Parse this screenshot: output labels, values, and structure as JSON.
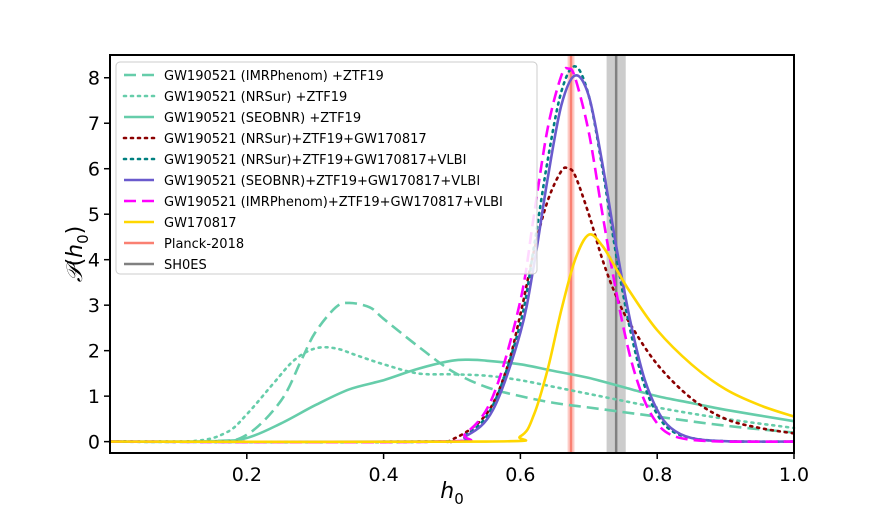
{
  "chart_data": {
    "type": "line",
    "title": "",
    "xlabel": "h_0",
    "ylabel": "P(h_0)",
    "xlim": [
      0.0,
      1.0
    ],
    "ylim": [
      -0.25,
      8.5
    ],
    "xticks": [
      0.2,
      0.4,
      0.6,
      0.8,
      1.0
    ],
    "xtick_labels": [
      "0.2",
      "0.4",
      "0.6",
      "0.8",
      "1.0"
    ],
    "yticks": [
      0,
      1,
      2,
      3,
      4,
      5,
      6,
      7,
      8
    ],
    "ytick_labels": [
      "0",
      "1",
      "2",
      "3",
      "4",
      "5",
      "6",
      "7",
      "8"
    ],
    "legend_position": "top-left",
    "series": [
      {
        "name": "GW190521 (IMRPhenom) +ZTF19",
        "color": "#66cdaa",
        "dash": "dashed",
        "x": [
          0.0,
          0.15,
          0.2,
          0.25,
          0.28,
          0.3,
          0.33,
          0.35,
          0.38,
          0.4,
          0.45,
          0.5,
          0.55,
          0.6,
          0.65,
          0.7,
          0.75,
          0.8,
          0.9,
          1.0
        ],
        "y": [
          0.0,
          0.01,
          0.15,
          0.9,
          1.8,
          2.4,
          2.95,
          3.05,
          2.95,
          2.7,
          2.1,
          1.55,
          1.2,
          1.0,
          0.85,
          0.75,
          0.65,
          0.55,
          0.35,
          0.2
        ]
      },
      {
        "name": "GW190521 (NRSur) +ZTF19",
        "color": "#66cdaa",
        "dash": "dotted",
        "x": [
          0.0,
          0.12,
          0.17,
          0.2,
          0.24,
          0.27,
          0.3,
          0.33,
          0.36,
          0.4,
          0.45,
          0.5,
          0.55,
          0.6,
          0.65,
          0.7,
          0.8,
          0.9,
          1.0
        ],
        "y": [
          0.0,
          0.01,
          0.2,
          0.6,
          1.3,
          1.8,
          2.05,
          2.05,
          1.9,
          1.7,
          1.5,
          1.48,
          1.45,
          1.35,
          1.2,
          1.05,
          0.75,
          0.5,
          0.3
        ]
      },
      {
        "name": "GW190521 (SEOBNR) +ZTF19",
        "color": "#66cdaa",
        "dash": "solid",
        "x": [
          0.0,
          0.15,
          0.2,
          0.25,
          0.3,
          0.35,
          0.4,
          0.45,
          0.5,
          0.53,
          0.55,
          0.6,
          0.65,
          0.7,
          0.75,
          0.8,
          0.85,
          0.9,
          1.0
        ],
        "y": [
          0.0,
          0.01,
          0.08,
          0.4,
          0.8,
          1.15,
          1.35,
          1.6,
          1.78,
          1.8,
          1.78,
          1.7,
          1.55,
          1.4,
          1.2,
          1.0,
          0.85,
          0.7,
          0.45
        ]
      },
      {
        "name": "GW190521 (NRSur)+ZTF19+GW170817",
        "color": "#8b0000",
        "dash": "dotted",
        "x": [
          0.0,
          0.45,
          0.5,
          0.55,
          0.58,
          0.6,
          0.62,
          0.64,
          0.66,
          0.67,
          0.68,
          0.7,
          0.72,
          0.74,
          0.76,
          0.8,
          0.85,
          0.9,
          0.95,
          1.0
        ],
        "y": [
          0.0,
          0.0,
          0.05,
          0.6,
          1.6,
          2.8,
          4.2,
          5.3,
          5.95,
          6.0,
          5.85,
          5.0,
          4.0,
          3.2,
          2.6,
          1.7,
          0.95,
          0.5,
          0.3,
          0.18
        ]
      },
      {
        "name": "GW190521 (NRSur)+ZTF19+GW170817+VLBI",
        "color": "#008080",
        "dash": "dotted",
        "x": [
          0.0,
          0.48,
          0.52,
          0.56,
          0.6,
          0.62,
          0.64,
          0.66,
          0.68,
          0.7,
          0.72,
          0.74,
          0.76,
          0.78,
          0.8,
          0.82,
          0.85,
          0.9,
          1.0
        ],
        "y": [
          0.0,
          0.0,
          0.15,
          0.8,
          2.6,
          4.3,
          6.2,
          7.7,
          8.25,
          7.6,
          6.0,
          4.1,
          2.5,
          1.3,
          0.6,
          0.25,
          0.08,
          0.01,
          0.0
        ]
      },
      {
        "name": "GW190521 (SEOBNR)+ZTF19+GW170817+VLBI",
        "color": "#6a5acd",
        "dash": "solid",
        "x": [
          0.0,
          0.48,
          0.52,
          0.56,
          0.6,
          0.62,
          0.64,
          0.66,
          0.68,
          0.7,
          0.72,
          0.74,
          0.76,
          0.78,
          0.8,
          0.82,
          0.85,
          0.9,
          1.0
        ],
        "y": [
          0.0,
          0.0,
          0.12,
          0.7,
          2.4,
          3.9,
          5.8,
          7.4,
          8.05,
          7.6,
          6.1,
          4.3,
          2.7,
          1.45,
          0.7,
          0.3,
          0.08,
          0.01,
          0.0
        ]
      },
      {
        "name": "GW190521 (IMRPhenom)+ZTF19+GW170817+VLBI",
        "color": "#ff00ff",
        "dash": "dashed",
        "x": [
          0.0,
          0.48,
          0.52,
          0.56,
          0.6,
          0.62,
          0.64,
          0.66,
          0.67,
          0.68,
          0.7,
          0.72,
          0.74,
          0.76,
          0.78,
          0.8,
          0.82,
          0.85,
          0.9,
          1.0
        ],
        "y": [
          0.0,
          0.0,
          0.18,
          1.0,
          3.1,
          5.0,
          6.9,
          8.05,
          8.2,
          8.0,
          6.8,
          5.0,
          3.3,
          1.9,
          0.95,
          0.4,
          0.15,
          0.04,
          0.0,
          0.0
        ]
      },
      {
        "name": "GW170817",
        "color": "#ffd700",
        "dash": "solid",
        "x": [
          0.0,
          0.55,
          0.6,
          0.62,
          0.64,
          0.66,
          0.68,
          0.7,
          0.72,
          0.74,
          0.76,
          0.8,
          0.85,
          0.9,
          0.95,
          1.0
        ],
        "y": [
          0.0,
          0.0,
          0.12,
          0.6,
          1.6,
          2.9,
          4.0,
          4.55,
          4.3,
          3.8,
          3.3,
          2.45,
          1.7,
          1.15,
          0.8,
          0.55
        ]
      }
    ],
    "vertical_bands": [
      {
        "name": "Planck-2018",
        "color": "#fa8072",
        "center": 0.674,
        "half_width": 0.005
      },
      {
        "name": "SH0ES",
        "color": "#808080",
        "center": 0.74,
        "half_width": 0.014
      }
    ],
    "legend": [
      {
        "label": "GW190521 (IMRPhenom) +ZTF19",
        "color": "#66cdaa",
        "dash": "dashed"
      },
      {
        "label": "GW190521 (NRSur) +ZTF19",
        "color": "#66cdaa",
        "dash": "dotted"
      },
      {
        "label": "GW190521 (SEOBNR) +ZTF19",
        "color": "#66cdaa",
        "dash": "solid"
      },
      {
        "label": "GW190521 (NRSur)+ZTF19+GW170817",
        "color": "#8b0000",
        "dash": "dotted"
      },
      {
        "label": "GW190521 (NRSur)+ZTF19+GW170817+VLBI",
        "color": "#008080",
        "dash": "dotted"
      },
      {
        "label": "GW190521 (SEOBNR)+ZTF19+GW170817+VLBI",
        "color": "#6a5acd",
        "dash": "solid"
      },
      {
        "label": "GW190521 (IMRPhenom)+ZTF19+GW170817+VLBI",
        "color": "#ff00ff",
        "dash": "dashed"
      },
      {
        "label": "GW170817",
        "color": "#ffd700",
        "dash": "solid"
      },
      {
        "label": "Planck-2018",
        "color": "#fa8072",
        "dash": "solid"
      },
      {
        "label": "SH0ES",
        "color": "#808080",
        "dash": "solid"
      }
    ]
  }
}
